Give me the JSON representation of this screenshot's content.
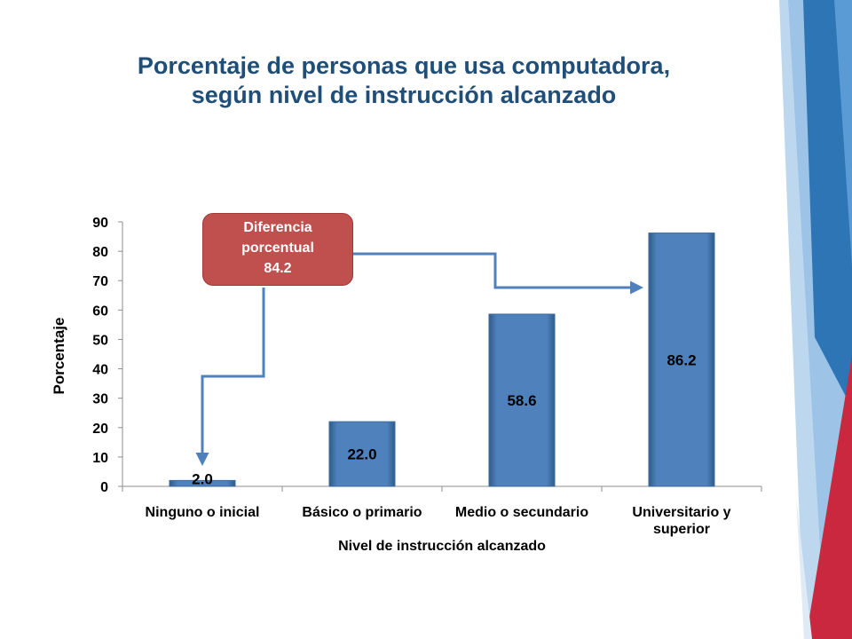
{
  "title": {
    "line1": "Porcentaje de personas que usa computadora,",
    "line2": "según nivel de instrucción alcanzado"
  },
  "callout": {
    "line1": "Diferencia",
    "line2": "porcentual",
    "line3": "84.2"
  },
  "colors": {
    "bar": "#4F81BD",
    "bar_dark": "#2E5C8A",
    "callout": "#C0504D",
    "title": "#1F4E79",
    "arrow": "#4F81BD"
  },
  "chart_data": {
    "type": "bar",
    "categories": [
      [
        "Ninguno o inicial"
      ],
      [
        "Básico o primario"
      ],
      [
        "Medio o secundario"
      ],
      [
        "Universitario y",
        "superior"
      ]
    ],
    "values": [
      2.0,
      22.0,
      58.6,
      86.2
    ],
    "value_labels": [
      "2.0",
      "22.0",
      "58.6",
      "86.2"
    ],
    "xlabel": "Nivel de instrucción alcanzado",
    "ylabel": "Porcentaje",
    "ylim": [
      0,
      90
    ],
    "yticks": [
      0,
      10,
      20,
      30,
      40,
      50,
      60,
      70,
      80,
      90
    ],
    "grid": false,
    "legend": "none"
  }
}
